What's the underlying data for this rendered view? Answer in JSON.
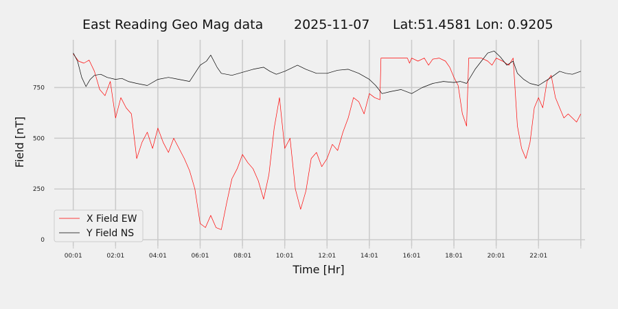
{
  "chart_data": {
    "type": "line",
    "title": {
      "name": "East Reading Geo Mag data",
      "date": "2025-11-07",
      "location": "Lat:51.4581  Lon: 0.9205"
    },
    "xlabel": "Time  [Hr]",
    "ylabel": "Field  [nT]",
    "x_unit": "hours",
    "xlim": [
      -0.9,
      24.2
    ],
    "ylim": [
      -30,
      985
    ],
    "x_ticks": [
      {
        "x": 0,
        "label": "00:01"
      },
      {
        "x": 2,
        "label": "02:01"
      },
      {
        "x": 4,
        "label": "04:01"
      },
      {
        "x": 6,
        "label": "06:01"
      },
      {
        "x": 8,
        "label": "08:01"
      },
      {
        "x": 10,
        "label": "10:01"
      },
      {
        "x": 12,
        "label": "12:01"
      },
      {
        "x": 14,
        "label": "14:01"
      },
      {
        "x": 16,
        "label": "16:01"
      },
      {
        "x": 18,
        "label": "18:01"
      },
      {
        "x": 20,
        "label": "20:01"
      },
      {
        "x": 22,
        "label": "22:01"
      },
      {
        "x": 24,
        "label": ""
      }
    ],
    "y_ticks": [
      {
        "y": 0,
        "label": "0"
      },
      {
        "y": 250,
        "label": "250"
      },
      {
        "y": 500,
        "label": "500"
      },
      {
        "y": 750,
        "label": "750"
      }
    ],
    "grid": true,
    "legend_position": "lower-left",
    "series": [
      {
        "name": "X Field EW",
        "color": "#ff0000",
        "points": [
          [
            0.0,
            915
          ],
          [
            0.25,
            880
          ],
          [
            0.5,
            870
          ],
          [
            0.75,
            885
          ],
          [
            1.0,
            830
          ],
          [
            1.25,
            740
          ],
          [
            1.5,
            710
          ],
          [
            1.75,
            780
          ],
          [
            2.0,
            600
          ],
          [
            2.25,
            700
          ],
          [
            2.5,
            650
          ],
          [
            2.75,
            620
          ],
          [
            3.0,
            400
          ],
          [
            3.25,
            480
          ],
          [
            3.5,
            530
          ],
          [
            3.75,
            450
          ],
          [
            4.0,
            550
          ],
          [
            4.25,
            480
          ],
          [
            4.5,
            430
          ],
          [
            4.75,
            500
          ],
          [
            5.0,
            450
          ],
          [
            5.25,
            400
          ],
          [
            5.5,
            340
          ],
          [
            5.75,
            250
          ],
          [
            6.0,
            80
          ],
          [
            6.25,
            60
          ],
          [
            6.5,
            120
          ],
          [
            6.75,
            60
          ],
          [
            7.0,
            50
          ],
          [
            7.25,
            180
          ],
          [
            7.5,
            300
          ],
          [
            7.75,
            350
          ],
          [
            8.0,
            420
          ],
          [
            8.25,
            380
          ],
          [
            8.5,
            350
          ],
          [
            8.75,
            290
          ],
          [
            9.0,
            200
          ],
          [
            9.25,
            320
          ],
          [
            9.5,
            550
          ],
          [
            9.75,
            700
          ],
          [
            10.0,
            450
          ],
          [
            10.25,
            500
          ],
          [
            10.5,
            250
          ],
          [
            10.75,
            150
          ],
          [
            11.0,
            240
          ],
          [
            11.25,
            400
          ],
          [
            11.5,
            430
          ],
          [
            11.75,
            360
          ],
          [
            12.0,
            400
          ],
          [
            12.25,
            470
          ],
          [
            12.5,
            440
          ],
          [
            12.75,
            530
          ],
          [
            13.0,
            600
          ],
          [
            13.25,
            700
          ],
          [
            13.5,
            680
          ],
          [
            13.75,
            620
          ],
          [
            14.0,
            720
          ],
          [
            14.25,
            700
          ],
          [
            14.5,
            690
          ],
          [
            14.55,
            895
          ],
          [
            15.0,
            895
          ],
          [
            15.5,
            895
          ],
          [
            15.8,
            895
          ],
          [
            15.9,
            870
          ],
          [
            16.0,
            895
          ],
          [
            16.3,
            880
          ],
          [
            16.6,
            895
          ],
          [
            16.8,
            860
          ],
          [
            17.0,
            890
          ],
          [
            17.3,
            895
          ],
          [
            17.6,
            880
          ],
          [
            17.8,
            850
          ],
          [
            18.0,
            800
          ],
          [
            18.2,
            760
          ],
          [
            18.4,
            620
          ],
          [
            18.6,
            560
          ],
          [
            18.7,
            895
          ],
          [
            19.0,
            895
          ],
          [
            19.3,
            895
          ],
          [
            19.6,
            880
          ],
          [
            19.8,
            860
          ],
          [
            20.0,
            895
          ],
          [
            20.3,
            880
          ],
          [
            20.6,
            860
          ],
          [
            20.8,
            895
          ],
          [
            21.0,
            560
          ],
          [
            21.2,
            450
          ],
          [
            21.4,
            400
          ],
          [
            21.6,
            480
          ],
          [
            21.8,
            650
          ],
          [
            22.0,
            700
          ],
          [
            22.2,
            650
          ],
          [
            22.4,
            780
          ],
          [
            22.6,
            810
          ],
          [
            22.8,
            700
          ],
          [
            23.0,
            650
          ],
          [
            23.2,
            600
          ],
          [
            23.4,
            620
          ],
          [
            23.6,
            600
          ],
          [
            23.8,
            580
          ],
          [
            24.0,
            620
          ]
        ]
      },
      {
        "name": "Y Field NS",
        "color": "#000000",
        "points": [
          [
            0.0,
            920
          ],
          [
            0.2,
            880
          ],
          [
            0.4,
            800
          ],
          [
            0.6,
            755
          ],
          [
            0.8,
            790
          ],
          [
            1.0,
            810
          ],
          [
            1.3,
            815
          ],
          [
            1.6,
            800
          ],
          [
            2.0,
            790
          ],
          [
            2.3,
            795
          ],
          [
            2.6,
            780
          ],
          [
            3.0,
            770
          ],
          [
            3.5,
            760
          ],
          [
            4.0,
            790
          ],
          [
            4.5,
            800
          ],
          [
            5.0,
            790
          ],
          [
            5.5,
            780
          ],
          [
            6.0,
            860
          ],
          [
            6.3,
            880
          ],
          [
            6.5,
            910
          ],
          [
            6.8,
            850
          ],
          [
            7.0,
            820
          ],
          [
            7.5,
            810
          ],
          [
            8.0,
            825
          ],
          [
            8.5,
            840
          ],
          [
            9.0,
            850
          ],
          [
            9.3,
            830
          ],
          [
            9.6,
            815
          ],
          [
            10.0,
            830
          ],
          [
            10.3,
            845
          ],
          [
            10.6,
            860
          ],
          [
            11.0,
            840
          ],
          [
            11.5,
            820
          ],
          [
            12.0,
            820
          ],
          [
            12.5,
            835
          ],
          [
            13.0,
            840
          ],
          [
            13.5,
            820
          ],
          [
            14.0,
            790
          ],
          [
            14.3,
            760
          ],
          [
            14.6,
            720
          ],
          [
            15.0,
            730
          ],
          [
            15.5,
            740
          ],
          [
            16.0,
            720
          ],
          [
            16.5,
            750
          ],
          [
            17.0,
            770
          ],
          [
            17.5,
            780
          ],
          [
            18.0,
            775
          ],
          [
            18.3,
            780
          ],
          [
            18.6,
            770
          ],
          [
            19.0,
            840
          ],
          [
            19.3,
            880
          ],
          [
            19.6,
            920
          ],
          [
            19.9,
            930
          ],
          [
            20.2,
            900
          ],
          [
            20.5,
            860
          ],
          [
            20.8,
            880
          ],
          [
            21.0,
            820
          ],
          [
            21.3,
            790
          ],
          [
            21.6,
            770
          ],
          [
            22.0,
            760
          ],
          [
            22.3,
            780
          ],
          [
            22.6,
            800
          ],
          [
            23.0,
            830
          ],
          [
            23.3,
            820
          ],
          [
            23.6,
            815
          ],
          [
            24.0,
            830
          ]
        ]
      }
    ]
  }
}
